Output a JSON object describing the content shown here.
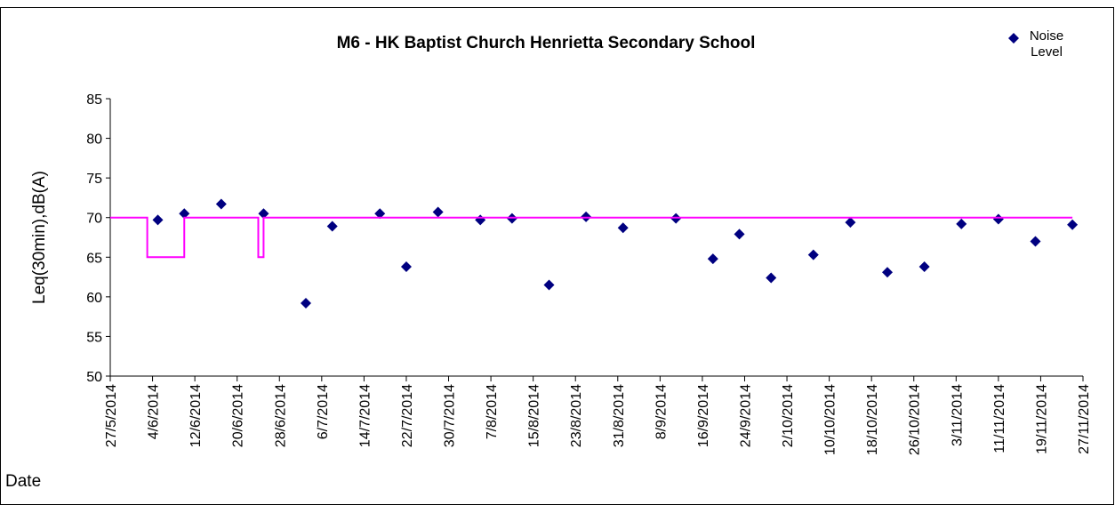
{
  "chart_data": {
    "type": "scatter",
    "title": "M6 - HK Baptist Church Henrietta Secondary School",
    "ylabel": "Leq(30min),dB(A)",
    "xlabel": "Date",
    "xlim": [
      "2014-05-27",
      "2014-11-27"
    ],
    "xticks": [
      {
        "value": "2014-05-27",
        "label": "27/5/2014"
      },
      {
        "value": "2014-06-04",
        "label": "4/6/2014"
      },
      {
        "value": "2014-06-12",
        "label": "12/6/2014"
      },
      {
        "value": "2014-06-20",
        "label": "20/6/2014"
      },
      {
        "value": "2014-06-28",
        "label": "28/6/2014"
      },
      {
        "value": "2014-07-06",
        "label": "6/7/2014"
      },
      {
        "value": "2014-07-14",
        "label": "14/7/2014"
      },
      {
        "value": "2014-07-22",
        "label": "22/7/2014"
      },
      {
        "value": "2014-07-30",
        "label": "30/7/2014"
      },
      {
        "value": "2014-08-07",
        "label": "7/8/2014"
      },
      {
        "value": "2014-08-15",
        "label": "15/8/2014"
      },
      {
        "value": "2014-08-23",
        "label": "23/8/2014"
      },
      {
        "value": "2014-08-31",
        "label": "31/8/2014"
      },
      {
        "value": "2014-09-08",
        "label": "8/9/2014"
      },
      {
        "value": "2014-09-16",
        "label": "16/9/2014"
      },
      {
        "value": "2014-09-24",
        "label": "24/9/2014"
      },
      {
        "value": "2014-10-02",
        "label": "2/10/2014"
      },
      {
        "value": "2014-10-10",
        "label": "10/10/2014"
      },
      {
        "value": "2014-10-18",
        "label": "18/10/2014"
      },
      {
        "value": "2014-10-26",
        "label": "26/10/2014"
      },
      {
        "value": "2014-11-03",
        "label": "3/11/2014"
      },
      {
        "value": "2014-11-11",
        "label": "11/11/2014"
      },
      {
        "value": "2014-11-19",
        "label": "19/11/2014"
      },
      {
        "value": "2014-11-27",
        "label": "27/11/2014"
      }
    ],
    "ylim": [
      50,
      85
    ],
    "yticks": [
      50,
      55,
      60,
      65,
      70,
      75,
      80,
      85
    ],
    "grid": false,
    "legend": "top-right",
    "series": [
      {
        "name": "Noise Level",
        "color": "#000080",
        "marker": "diamond",
        "x": [
          "2014-06-05",
          "2014-06-10",
          "2014-06-17",
          "2014-06-25",
          "2014-07-03",
          "2014-07-08",
          "2014-07-17",
          "2014-07-22",
          "2014-07-28",
          "2014-08-05",
          "2014-08-11",
          "2014-08-18",
          "2014-08-25",
          "2014-09-01",
          "2014-09-11",
          "2014-09-18",
          "2014-09-23",
          "2014-09-29",
          "2014-10-07",
          "2014-10-14",
          "2014-10-21",
          "2014-10-28",
          "2014-11-04",
          "2014-11-11",
          "2014-11-18",
          "2014-11-25"
        ],
        "values": [
          69.7,
          70.5,
          71.7,
          70.5,
          59.2,
          68.9,
          70.5,
          63.8,
          70.7,
          69.7,
          69.9,
          61.5,
          70.1,
          68.7,
          69.9,
          64.8,
          67.9,
          62.4,
          65.3,
          69.4,
          63.1,
          63.8,
          69.2,
          69.8,
          67.0,
          69.1
        ]
      },
      {
        "type": "line",
        "color": "#ff00ff",
        "x": [
          "2014-05-27",
          "2014-06-03",
          "2014-06-03",
          "2014-06-10",
          "2014-06-10",
          "2014-06-24",
          "2014-06-24",
          "2014-06-25",
          "2014-06-25",
          "2014-11-25"
        ],
        "values": [
          70,
          70,
          65,
          65,
          70,
          70,
          65,
          65,
          70,
          70
        ]
      }
    ]
  }
}
